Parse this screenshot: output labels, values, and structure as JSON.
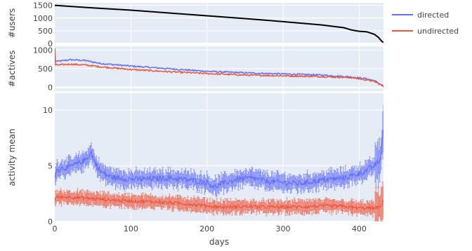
{
  "chart_data": {
    "type": "line",
    "xlabel": "days",
    "xlim": [
      0,
      432
    ],
    "x_ticks": [
      0,
      100,
      200,
      300,
      400
    ],
    "legend_position": "top-right",
    "legend": [
      {
        "name": "directed",
        "color": "#636efa"
      },
      {
        "name": "undirected",
        "color": "#ef553b"
      }
    ],
    "panels": [
      {
        "id": "users",
        "ylabel": "#users",
        "ylim": [
          0,
          1600
        ],
        "y_ticks": [
          0,
          500,
          1000,
          1500
        ],
        "series": [
          {
            "color": "#000000",
            "x": [
              0,
              50,
              100,
              150,
              200,
              250,
              300,
              350,
              380,
              390,
              400,
              410,
              420,
              425,
              430,
              432
            ],
            "y": [
              1500,
              1400,
              1310,
              1200,
              1090,
              980,
              860,
              730,
              620,
              530,
              480,
              460,
              360,
              250,
              80,
              40
            ]
          }
        ]
      },
      {
        "id": "actives",
        "ylabel": "#actives",
        "ylim": [
          -100,
          1100
        ],
        "y_ticks": [
          0,
          500,
          1000
        ],
        "series": [
          {
            "name": "directed",
            "color": "#636efa",
            "x": [
              0,
              1,
              5,
              20,
              40,
              60,
              100,
              150,
              200,
              250,
              300,
              350,
              390,
              410,
              420,
              430,
              432
            ],
            "y": [
              1000,
              700,
              700,
              740,
              720,
              640,
              570,
              500,
              430,
              390,
              360,
              330,
              280,
              230,
              180,
              60,
              20
            ]
          },
          {
            "name": "undirected",
            "color": "#ef553b",
            "x": [
              0,
              1,
              5,
              20,
              40,
              60,
              100,
              150,
              200,
              250,
              300,
              350,
              390,
              410,
              420,
              430,
              432
            ],
            "y": [
              1050,
              600,
              600,
              620,
              600,
              550,
              480,
              420,
              370,
              330,
              310,
              290,
              260,
              200,
              160,
              50,
              20
            ]
          }
        ]
      },
      {
        "id": "activity",
        "ylabel": "activity mean",
        "ylim": [
          0,
          11.5
        ],
        "y_ticks": [
          0,
          5,
          10
        ],
        "series": [
          {
            "name": "directed",
            "color": "#636efa",
            "x": [
              0,
              2,
              10,
              20,
              30,
              40,
              48,
              52,
              60,
              70,
              80,
              100,
              120,
              150,
              180,
              200,
              210,
              220,
              240,
              260,
              280,
              300,
              320,
              340,
              360,
              380,
              400,
              410,
              420,
              428,
              432
            ],
            "y": [
              4.0,
              4.6,
              4.8,
              4.9,
              5.2,
              5.5,
              6.2,
              5.4,
              4.5,
              4.1,
              3.9,
              3.8,
              3.8,
              3.9,
              3.7,
              3.5,
              3.1,
              3.4,
              3.8,
              3.9,
              3.6,
              3.5,
              3.4,
              3.6,
              3.8,
              3.9,
              4.3,
              4.6,
              5.0,
              5.5,
              8.5
            ]
          },
          {
            "name": "undirected",
            "color": "#ef553b",
            "x": [
              0,
              2,
              20,
              40,
              60,
              80,
              100,
              120,
              150,
              180,
              200,
              220,
              250,
              280,
              300,
              330,
              360,
              380,
              400,
              420,
              428,
              432
            ],
            "y": [
              1.8,
              2.2,
              2.2,
              2.1,
              2.0,
              1.9,
              1.85,
              1.8,
              1.7,
              1.55,
              1.4,
              1.3,
              1.35,
              1.3,
              1.3,
              1.35,
              1.4,
              1.35,
              1.2,
              1.2,
              1.3,
              1.9
            ]
          }
        ]
      }
    ]
  }
}
